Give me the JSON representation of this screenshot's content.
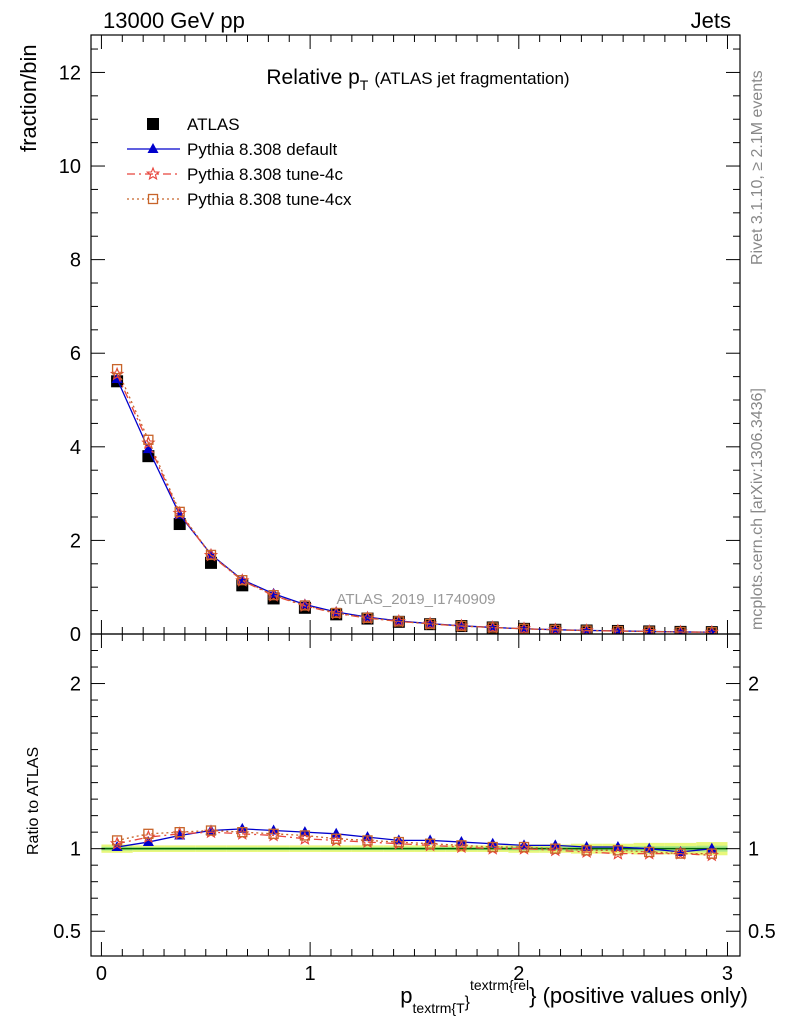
{
  "header": {
    "left": "13000 GeV pp",
    "right": "Jets"
  },
  "side_labels": {
    "rivet": "Rivet 3.1.10, ≥ 2.1M events",
    "mcplots": "mcplots.cern.ch [arXiv:1306.3436]"
  },
  "chart_data": [
    {
      "type": "scatter",
      "title_main": "Relative p",
      "title_sub": "T",
      "title_extra": "(ATLAS jet fragmentation)",
      "ylabel": "fraction/bin",
      "watermark": "ATLAS_2019_I1740909",
      "xlim": [
        -0.05,
        3.06
      ],
      "ylim": [
        0,
        12.8
      ],
      "yticks": [
        0,
        2,
        4,
        6,
        8,
        10,
        12
      ],
      "legend_position": "top-left",
      "x": [
        0.075,
        0.225,
        0.375,
        0.525,
        0.675,
        0.825,
        0.975,
        1.125,
        1.275,
        1.425,
        1.575,
        1.725,
        1.875,
        2.025,
        2.175,
        2.325,
        2.475,
        2.625,
        2.775,
        2.925
      ],
      "series": [
        {
          "name": "ATLAS",
          "color": "#000000",
          "marker": "square-filled",
          "values": [
            5.4,
            3.8,
            2.35,
            1.52,
            1.04,
            0.76,
            0.56,
            0.42,
            0.33,
            0.26,
            0.21,
            0.17,
            0.14,
            0.11,
            0.09,
            0.075,
            0.065,
            0.055,
            0.045,
            0.04
          ]
        },
        {
          "name": "Pythia 8.308 default",
          "color": "#0000cc",
          "marker": "triangle-filled",
          "line": "solid",
          "values": [
            5.45,
            3.95,
            2.55,
            1.7,
            1.16,
            0.86,
            0.63,
            0.47,
            0.36,
            0.28,
            0.22,
            0.175,
            0.14,
            0.112,
            0.092,
            0.076,
            0.066,
            0.055,
            0.044,
            0.04
          ]
        },
        {
          "name": "Pythia 8.308 tune-4c",
          "color": "#e8453c",
          "marker": "star-open",
          "line": "dashdot",
          "values": [
            5.55,
            4.08,
            2.58,
            1.68,
            1.14,
            0.82,
            0.6,
            0.44,
            0.34,
            0.27,
            0.215,
            0.17,
            0.138,
            0.111,
            0.089,
            0.073,
            0.063,
            0.053,
            0.043,
            0.038
          ]
        },
        {
          "name": "Pythia 8.308 tune-4cx",
          "color": "#c8642a",
          "marker": "square-open",
          "line": "dotted",
          "values": [
            5.66,
            4.15,
            2.61,
            1.69,
            1.15,
            0.83,
            0.61,
            0.45,
            0.345,
            0.27,
            0.215,
            0.172,
            0.14,
            0.112,
            0.09,
            0.074,
            0.064,
            0.053,
            0.043,
            0.039
          ]
        }
      ]
    },
    {
      "type": "line",
      "ylabel": "Ratio to ATLAS",
      "xlabel_main": "p",
      "xlabel_sub": "textrm{T",
      "xlabel_sup": "textrm{rel",
      "xlabel_close": "}",
      "xlabel_suffix": "} (positive values only)",
      "xlim": [
        -0.05,
        3.06
      ],
      "ylim": [
        0.35,
        2.3
      ],
      "yticks": [
        0.5,
        1,
        2
      ],
      "xticks": [
        0,
        1,
        2,
        3
      ],
      "band_color": "#e8f77a",
      "band_inner_color": "#a8e88a",
      "x": [
        0.075,
        0.225,
        0.375,
        0.525,
        0.675,
        0.825,
        0.975,
        1.125,
        1.275,
        1.425,
        1.575,
        1.725,
        1.875,
        2.025,
        2.175,
        2.325,
        2.475,
        2.625,
        2.775,
        2.925
      ],
      "band_half_width": [
        0.025,
        0.02,
        0.02,
        0.02,
        0.02,
        0.02,
        0.02,
        0.02,
        0.02,
        0.02,
        0.02,
        0.02,
        0.02,
        0.025,
        0.025,
        0.03,
        0.03,
        0.035,
        0.035,
        0.04
      ],
      "series": [
        {
          "name": "Pythia 8.308 default",
          "color": "#0000cc",
          "marker": "triangle-filled",
          "line": "solid",
          "values": [
            1.01,
            1.04,
            1.08,
            1.11,
            1.12,
            1.11,
            1.1,
            1.09,
            1.07,
            1.05,
            1.05,
            1.04,
            1.03,
            1.02,
            1.02,
            1.01,
            1.01,
            1.0,
            0.98,
            1.0
          ]
        },
        {
          "name": "Pythia 8.308 tune-4c",
          "color": "#e8453c",
          "marker": "star-open",
          "line": "dashdot",
          "values": [
            1.03,
            1.07,
            1.09,
            1.1,
            1.09,
            1.08,
            1.06,
            1.05,
            1.04,
            1.03,
            1.02,
            1.01,
            1.0,
            1.0,
            0.99,
            0.98,
            0.97,
            0.97,
            0.97,
            0.96
          ]
        },
        {
          "name": "Pythia 8.308 tune-4cx",
          "color": "#c8642a",
          "marker": "square-open",
          "line": "dotted",
          "values": [
            1.05,
            1.09,
            1.1,
            1.11,
            1.1,
            1.09,
            1.08,
            1.06,
            1.05,
            1.04,
            1.03,
            1.02,
            1.01,
            1.01,
            1.0,
            0.99,
            0.99,
            0.98,
            0.97,
            0.97
          ]
        }
      ]
    }
  ]
}
